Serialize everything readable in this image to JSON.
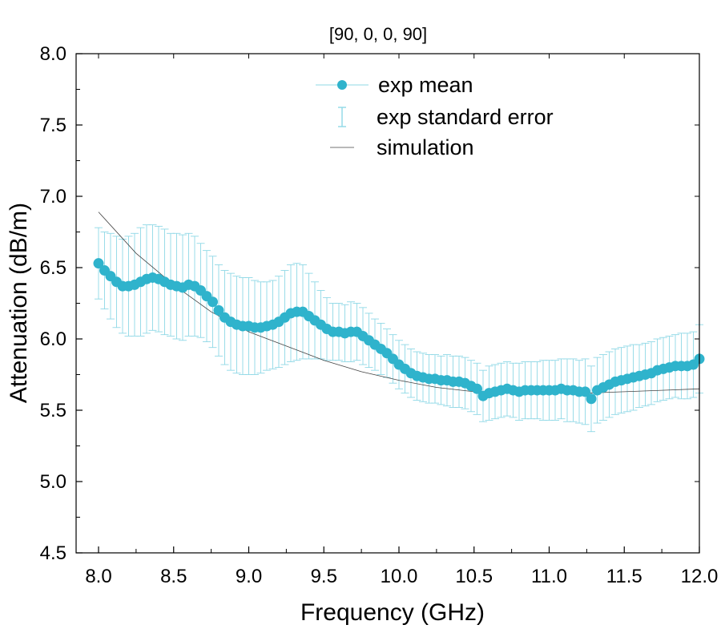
{
  "chart_data": {
    "type": "scatter",
    "title": "[90, 0, 0, 90]",
    "xlabel": "Frequency (GHz)",
    "ylabel": "Attenuation (dB/m)",
    "xlim": [
      7.95,
      12.0
    ],
    "ylim": [
      4.5,
      8.0
    ],
    "x_ticks": [
      8.0,
      8.5,
      9.0,
      9.5,
      10.0,
      10.5,
      11.0,
      11.5,
      12.0
    ],
    "x_tick_labels": [
      "8.0",
      "8.5",
      "9.0",
      "9.5",
      "10.0",
      "10.5",
      "11.0",
      "11.5",
      "12.0"
    ],
    "y_ticks": [
      4.5,
      5.0,
      5.5,
      6.0,
      6.5,
      7.0,
      7.5,
      8.0
    ],
    "y_tick_labels": [
      "4.5",
      "5.0",
      "5.5",
      "6.0",
      "6.5",
      "7.0",
      "7.5",
      "8.0"
    ],
    "grid": false,
    "legend_position": "top-center",
    "colors": {
      "exp": "#2fb3cc",
      "error": "#8fd8e6",
      "sim": "#444444",
      "axis": "#000000"
    },
    "series": [
      {
        "name": "exp mean",
        "kind": "scatter",
        "x": [
          8.0,
          8.04,
          8.08,
          8.12,
          8.16,
          8.2,
          8.24,
          8.28,
          8.32,
          8.36,
          8.4,
          8.44,
          8.48,
          8.52,
          8.56,
          8.6,
          8.64,
          8.68,
          8.72,
          8.76,
          8.8,
          8.84,
          8.88,
          8.92,
          8.96,
          9.0,
          9.04,
          9.08,
          9.12,
          9.16,
          9.2,
          9.24,
          9.28,
          9.32,
          9.36,
          9.4,
          9.44,
          9.48,
          9.52,
          9.56,
          9.6,
          9.64,
          9.68,
          9.72,
          9.76,
          9.8,
          9.84,
          9.88,
          9.92,
          9.96,
          10.0,
          10.04,
          10.08,
          10.12,
          10.16,
          10.2,
          10.24,
          10.28,
          10.32,
          10.36,
          10.4,
          10.44,
          10.48,
          10.52,
          10.56,
          10.6,
          10.64,
          10.68,
          10.72,
          10.76,
          10.8,
          10.84,
          10.88,
          10.92,
          10.96,
          11.0,
          11.04,
          11.08,
          11.12,
          11.16,
          11.2,
          11.24,
          11.28,
          11.32,
          11.36,
          11.4,
          11.44,
          11.48,
          11.52,
          11.56,
          11.6,
          11.64,
          11.68,
          11.72,
          11.76,
          11.8,
          11.84,
          11.88,
          11.92,
          11.96,
          12.0
        ],
        "y": [
          6.53,
          6.48,
          6.44,
          6.4,
          6.37,
          6.37,
          6.38,
          6.4,
          6.42,
          6.43,
          6.42,
          6.4,
          6.38,
          6.37,
          6.36,
          6.38,
          6.37,
          6.34,
          6.3,
          6.26,
          6.2,
          6.15,
          6.12,
          6.1,
          6.09,
          6.09,
          6.08,
          6.08,
          6.09,
          6.1,
          6.12,
          6.15,
          6.18,
          6.19,
          6.19,
          6.16,
          6.13,
          6.1,
          6.07,
          6.05,
          6.05,
          6.04,
          6.05,
          6.05,
          6.02,
          5.99,
          5.96,
          5.93,
          5.9,
          5.86,
          5.82,
          5.79,
          5.76,
          5.74,
          5.73,
          5.72,
          5.72,
          5.71,
          5.71,
          5.7,
          5.7,
          5.69,
          5.67,
          5.65,
          5.6,
          5.62,
          5.63,
          5.64,
          5.65,
          5.64,
          5.63,
          5.64,
          5.64,
          5.64,
          5.64,
          5.64,
          5.64,
          5.65,
          5.64,
          5.64,
          5.63,
          5.63,
          5.58,
          5.64,
          5.66,
          5.68,
          5.7,
          5.71,
          5.72,
          5.73,
          5.74,
          5.75,
          5.76,
          5.78,
          5.79,
          5.8,
          5.81,
          5.81,
          5.81,
          5.82,
          5.86
        ]
      },
      {
        "name": "exp standard error",
        "kind": "errorbar",
        "x": [
          8.0,
          8.04,
          8.08,
          8.12,
          8.16,
          8.2,
          8.24,
          8.28,
          8.32,
          8.36,
          8.4,
          8.44,
          8.48,
          8.52,
          8.56,
          8.6,
          8.64,
          8.68,
          8.72,
          8.76,
          8.8,
          8.84,
          8.88,
          8.92,
          8.96,
          9.0,
          9.04,
          9.08,
          9.12,
          9.16,
          9.2,
          9.24,
          9.28,
          9.32,
          9.36,
          9.4,
          9.44,
          9.48,
          9.52,
          9.56,
          9.6,
          9.64,
          9.68,
          9.72,
          9.76,
          9.8,
          9.84,
          9.88,
          9.92,
          9.96,
          10.0,
          10.04,
          10.08,
          10.12,
          10.16,
          10.2,
          10.24,
          10.28,
          10.32,
          10.36,
          10.4,
          10.44,
          10.48,
          10.52,
          10.56,
          10.6,
          10.64,
          10.68,
          10.72,
          10.76,
          10.8,
          10.84,
          10.88,
          10.92,
          10.96,
          11.0,
          11.04,
          11.08,
          11.12,
          11.16,
          11.2,
          11.24,
          11.28,
          11.32,
          11.36,
          11.4,
          11.44,
          11.48,
          11.52,
          11.56,
          11.6,
          11.64,
          11.68,
          11.72,
          11.76,
          11.8,
          11.84,
          11.88,
          11.92,
          11.96,
          12.0
        ],
        "y": [
          6.53,
          6.48,
          6.44,
          6.4,
          6.37,
          6.37,
          6.38,
          6.4,
          6.42,
          6.43,
          6.42,
          6.4,
          6.38,
          6.37,
          6.36,
          6.38,
          6.37,
          6.34,
          6.3,
          6.26,
          6.2,
          6.15,
          6.12,
          6.1,
          6.09,
          6.09,
          6.08,
          6.08,
          6.09,
          6.1,
          6.12,
          6.15,
          6.18,
          6.19,
          6.19,
          6.16,
          6.13,
          6.1,
          6.07,
          6.05,
          6.05,
          6.04,
          6.05,
          6.05,
          6.02,
          5.99,
          5.96,
          5.93,
          5.9,
          5.86,
          5.82,
          5.79,
          5.76,
          5.74,
          5.73,
          5.72,
          5.72,
          5.71,
          5.71,
          5.7,
          5.7,
          5.69,
          5.67,
          5.65,
          5.6,
          5.62,
          5.63,
          5.64,
          5.65,
          5.64,
          5.63,
          5.64,
          5.64,
          5.64,
          5.64,
          5.64,
          5.64,
          5.65,
          5.64,
          5.64,
          5.63,
          5.63,
          5.58,
          5.64,
          5.66,
          5.68,
          5.7,
          5.71,
          5.72,
          5.73,
          5.74,
          5.75,
          5.76,
          5.78,
          5.79,
          5.8,
          5.81,
          5.81,
          5.81,
          5.82,
          5.86
        ],
        "err": [
          0.25,
          0.27,
          0.3,
          0.32,
          0.33,
          0.35,
          0.36,
          0.38,
          0.38,
          0.37,
          0.37,
          0.37,
          0.36,
          0.37,
          0.37,
          0.36,
          0.35,
          0.33,
          0.32,
          0.32,
          0.32,
          0.33,
          0.34,
          0.34,
          0.34,
          0.34,
          0.33,
          0.32,
          0.31,
          0.31,
          0.32,
          0.33,
          0.34,
          0.34,
          0.33,
          0.3,
          0.27,
          0.24,
          0.22,
          0.2,
          0.2,
          0.2,
          0.21,
          0.2,
          0.2,
          0.19,
          0.18,
          0.18,
          0.17,
          0.17,
          0.17,
          0.17,
          0.17,
          0.17,
          0.17,
          0.17,
          0.17,
          0.17,
          0.18,
          0.18,
          0.18,
          0.18,
          0.18,
          0.18,
          0.18,
          0.19,
          0.19,
          0.19,
          0.19,
          0.19,
          0.2,
          0.2,
          0.2,
          0.2,
          0.21,
          0.21,
          0.21,
          0.21,
          0.22,
          0.22,
          0.22,
          0.23,
          0.23,
          0.23,
          0.23,
          0.23,
          0.23,
          0.23,
          0.23,
          0.23,
          0.22,
          0.22,
          0.22,
          0.22,
          0.22,
          0.22,
          0.22,
          0.23,
          0.23,
          0.23,
          0.24
        ]
      },
      {
        "name": "simulation",
        "kind": "line",
        "x": [
          8.0,
          8.25,
          8.5,
          8.75,
          9.0,
          9.25,
          9.5,
          9.75,
          10.0,
          10.25,
          10.5,
          10.75,
          11.0,
          11.25,
          11.5,
          11.75,
          12.0
        ],
        "y": [
          6.89,
          6.6,
          6.38,
          6.19,
          6.05,
          5.95,
          5.85,
          5.77,
          5.71,
          5.66,
          5.63,
          5.62,
          5.62,
          5.62,
          5.63,
          5.64,
          5.65
        ]
      }
    ],
    "legend": [
      "exp mean",
      "exp standard error",
      "simulation"
    ]
  }
}
